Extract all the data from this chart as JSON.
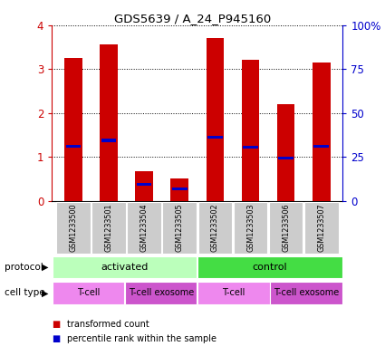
{
  "title": "GDS5639 / A_24_P945160",
  "samples": [
    "GSM1233500",
    "GSM1233501",
    "GSM1233504",
    "GSM1233505",
    "GSM1233502",
    "GSM1233503",
    "GSM1233506",
    "GSM1233507"
  ],
  "transformed_counts": [
    3.25,
    3.55,
    0.68,
    0.52,
    3.7,
    3.2,
    2.2,
    3.15
  ],
  "percentile_ranks": [
    1.25,
    1.38,
    0.38,
    0.28,
    1.45,
    1.22,
    0.98,
    1.25
  ],
  "bar_color": "#cc0000",
  "percentile_color": "#0000cc",
  "ylim": [
    0,
    4
  ],
  "yticks_left": [
    0,
    1,
    2,
    3,
    4
  ],
  "yticks_right": [
    0,
    25,
    50,
    75,
    100
  ],
  "ylabel_left_color": "#cc0000",
  "ylabel_right_color": "#0000cc",
  "protocol_groups": [
    {
      "label": "activated",
      "start": 0,
      "end": 4,
      "color": "#bbffbb"
    },
    {
      "label": "control",
      "start": 4,
      "end": 8,
      "color": "#44dd44"
    }
  ],
  "cell_type_groups": [
    {
      "label": "T-cell",
      "start": 0,
      "end": 2,
      "color": "#ee88ee"
    },
    {
      "label": "T-cell exosome",
      "start": 2,
      "end": 4,
      "color": "#cc55cc"
    },
    {
      "label": "T-cell",
      "start": 4,
      "end": 6,
      "color": "#ee88ee"
    },
    {
      "label": "T-cell exosome",
      "start": 6,
      "end": 8,
      "color": "#cc55cc"
    }
  ],
  "legend_items": [
    {
      "label": "transformed count",
      "color": "#cc0000"
    },
    {
      "label": "percentile rank within the sample",
      "color": "#0000cc"
    }
  ],
  "bar_width": 0.5,
  "background_color": "#ffffff",
  "sample_box_color": "#cccccc",
  "tick_label_color_left": "#cc0000",
  "tick_label_color_right": "#0000cc"
}
